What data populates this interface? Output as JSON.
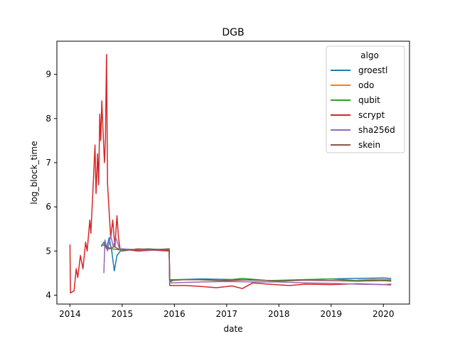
{
  "chart_data": {
    "type": "line",
    "title": "DGB",
    "xlabel": "date",
    "ylabel": "log_block_time",
    "xlim": [
      2013.75,
      2020.5
    ],
    "ylim": [
      3.8,
      9.75
    ],
    "x_ticks": [
      2014,
      2015,
      2016,
      2017,
      2018,
      2019,
      2020
    ],
    "x_tick_labels": [
      "2014",
      "2015",
      "2016",
      "2017",
      "2018",
      "2019",
      "2020"
    ],
    "y_ticks": [
      4,
      5,
      6,
      7,
      8,
      9
    ],
    "y_tick_labels": [
      "4",
      "5",
      "6",
      "7",
      "8",
      "9"
    ],
    "grid": false,
    "legend": {
      "title": "algo",
      "placement": "top-right"
    },
    "series": [
      {
        "name": "groestl",
        "color": "#1f77b4",
        "points": [
          [
            2014.6,
            5.1
          ],
          [
            2014.65,
            5.2
          ],
          [
            2014.7,
            5.05
          ],
          [
            2014.75,
            5.3
          ],
          [
            2014.8,
            5.0
          ],
          [
            2014.85,
            4.55
          ],
          [
            2014.9,
            4.9
          ],
          [
            2015.0,
            5.05
          ],
          [
            2015.3,
            5.02
          ],
          [
            2015.6,
            5.04
          ],
          [
            2015.9,
            5.03
          ],
          [
            2015.91,
            4.3
          ],
          [
            2016.0,
            4.35
          ],
          [
            2016.5,
            4.37
          ],
          [
            2017.0,
            4.36
          ],
          [
            2017.5,
            4.34
          ],
          [
            2018.0,
            4.33
          ],
          [
            2018.5,
            4.35
          ],
          [
            2019.0,
            4.37
          ],
          [
            2019.5,
            4.38
          ],
          [
            2020.0,
            4.39
          ],
          [
            2020.15,
            4.38
          ]
        ]
      },
      {
        "name": "odo",
        "color": "#ff7f0e",
        "points": [
          [
            2019.5,
            4.34
          ],
          [
            2019.8,
            4.36
          ],
          [
            2020.15,
            4.35
          ]
        ]
      },
      {
        "name": "qubit",
        "color": "#2ca02c",
        "points": [
          [
            2014.6,
            5.15
          ],
          [
            2014.8,
            5.05
          ],
          [
            2015.0,
            5.02
          ],
          [
            2015.5,
            5.05
          ],
          [
            2015.9,
            5.02
          ],
          [
            2015.91,
            4.33
          ],
          [
            2016.3,
            4.36
          ],
          [
            2016.9,
            4.33
          ],
          [
            2017.3,
            4.38
          ],
          [
            2017.8,
            4.33
          ],
          [
            2018.4,
            4.35
          ],
          [
            2019.0,
            4.37
          ],
          [
            2019.5,
            4.33
          ],
          [
            2020.15,
            4.34
          ]
        ]
      },
      {
        "name": "scrypt",
        "color": "#d62728",
        "points": [
          [
            2014.0,
            5.15
          ],
          [
            2014.01,
            4.05
          ],
          [
            2014.08,
            4.1
          ],
          [
            2014.12,
            4.6
          ],
          [
            2014.15,
            4.4
          ],
          [
            2014.2,
            4.9
          ],
          [
            2014.25,
            4.6
          ],
          [
            2014.3,
            5.2
          ],
          [
            2014.33,
            5.0
          ],
          [
            2014.38,
            5.7
          ],
          [
            2014.4,
            5.4
          ],
          [
            2014.45,
            6.6
          ],
          [
            2014.48,
            7.4
          ],
          [
            2014.5,
            6.3
          ],
          [
            2014.53,
            7.2
          ],
          [
            2014.55,
            6.5
          ],
          [
            2014.57,
            8.1
          ],
          [
            2014.59,
            7.5
          ],
          [
            2014.61,
            8.4
          ],
          [
            2014.63,
            7.8
          ],
          [
            2014.66,
            7.0
          ],
          [
            2014.68,
            7.5
          ],
          [
            2014.7,
            9.45
          ],
          [
            2014.72,
            6.5
          ],
          [
            2014.75,
            5.9
          ],
          [
            2014.78,
            5.3
          ],
          [
            2014.82,
            5.7
          ],
          [
            2014.86,
            5.1
          ],
          [
            2014.9,
            5.8
          ],
          [
            2014.93,
            5.3
          ],
          [
            2014.96,
            5.05
          ],
          [
            2015.3,
            5.0
          ],
          [
            2015.6,
            5.02
          ],
          [
            2015.9,
            5.0
          ],
          [
            2015.91,
            4.22
          ],
          [
            2016.2,
            4.22
          ],
          [
            2016.5,
            4.2
          ],
          [
            2016.8,
            4.17
          ],
          [
            2017.1,
            4.21
          ],
          [
            2017.3,
            4.15
          ],
          [
            2017.5,
            4.28
          ],
          [
            2017.8,
            4.25
          ],
          [
            2018.2,
            4.22
          ],
          [
            2018.5,
            4.25
          ],
          [
            2019.0,
            4.24
          ],
          [
            2019.5,
            4.26
          ],
          [
            2020.0,
            4.24
          ],
          [
            2020.15,
            4.25
          ]
        ]
      },
      {
        "name": "sha256d",
        "color": "#9467bd",
        "points": [
          [
            2014.65,
            4.5
          ],
          [
            2014.67,
            5.25
          ],
          [
            2014.72,
            5.0
          ],
          [
            2014.78,
            5.35
          ],
          [
            2014.83,
            5.1
          ],
          [
            2014.88,
            5.3
          ],
          [
            2014.95,
            5.05
          ],
          [
            2015.3,
            5.03
          ],
          [
            2015.6,
            5.02
          ],
          [
            2015.9,
            5.05
          ],
          [
            2015.91,
            4.28
          ],
          [
            2016.5,
            4.3
          ],
          [
            2017.0,
            4.31
          ],
          [
            2017.5,
            4.3
          ],
          [
            2018.0,
            4.3
          ],
          [
            2018.5,
            4.28
          ],
          [
            2019.0,
            4.27
          ],
          [
            2019.5,
            4.25
          ],
          [
            2020.0,
            4.24
          ],
          [
            2020.15,
            4.23
          ]
        ]
      },
      {
        "name": "skein",
        "color": "#8c564b",
        "points": [
          [
            2014.65,
            5.15
          ],
          [
            2014.75,
            5.05
          ],
          [
            2014.85,
            5.1
          ],
          [
            2015.0,
            5.0
          ],
          [
            2015.3,
            5.05
          ],
          [
            2015.6,
            5.03
          ],
          [
            2015.9,
            5.05
          ],
          [
            2015.91,
            4.35
          ],
          [
            2016.5,
            4.35
          ],
          [
            2017.0,
            4.33
          ],
          [
            2017.5,
            4.35
          ],
          [
            2018.0,
            4.32
          ],
          [
            2018.5,
            4.34
          ],
          [
            2019.0,
            4.33
          ],
          [
            2019.5,
            4.32
          ],
          [
            2020.0,
            4.33
          ],
          [
            2020.15,
            4.32
          ]
        ]
      }
    ]
  }
}
